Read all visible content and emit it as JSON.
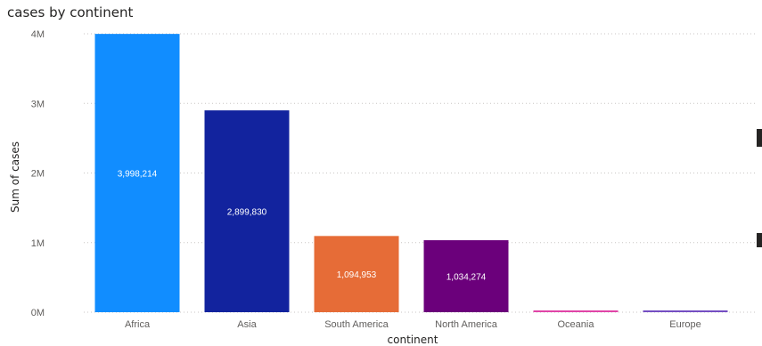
{
  "chart_data": {
    "type": "bar",
    "title": "cases by continent",
    "xlabel": "continent",
    "ylabel": "Sum of cases",
    "categories": [
      "Africa",
      "Asia",
      "South America",
      "North America",
      "Oceania",
      "Europe"
    ],
    "values": [
      3998214,
      2899830,
      1094953,
      1034274,
      12000,
      8000
    ],
    "data_labels": [
      "3,998,214",
      "2,899,830",
      "1,094,953",
      "1,034,274",
      "",
      ""
    ],
    "colors": [
      "#118DFF",
      "#12239E",
      "#E66C37",
      "#6B007B",
      "#E044A7",
      "#744EC2"
    ],
    "ylim": [
      0,
      4000000
    ],
    "yticks": [
      {
        "value": 0,
        "label": "0M"
      },
      {
        "value": 1000000,
        "label": "1M"
      },
      {
        "value": 2000000,
        "label": "2M"
      },
      {
        "value": 3000000,
        "label": "3M"
      },
      {
        "value": 4000000,
        "label": "4M"
      }
    ],
    "grid": true,
    "legend": "none"
  }
}
